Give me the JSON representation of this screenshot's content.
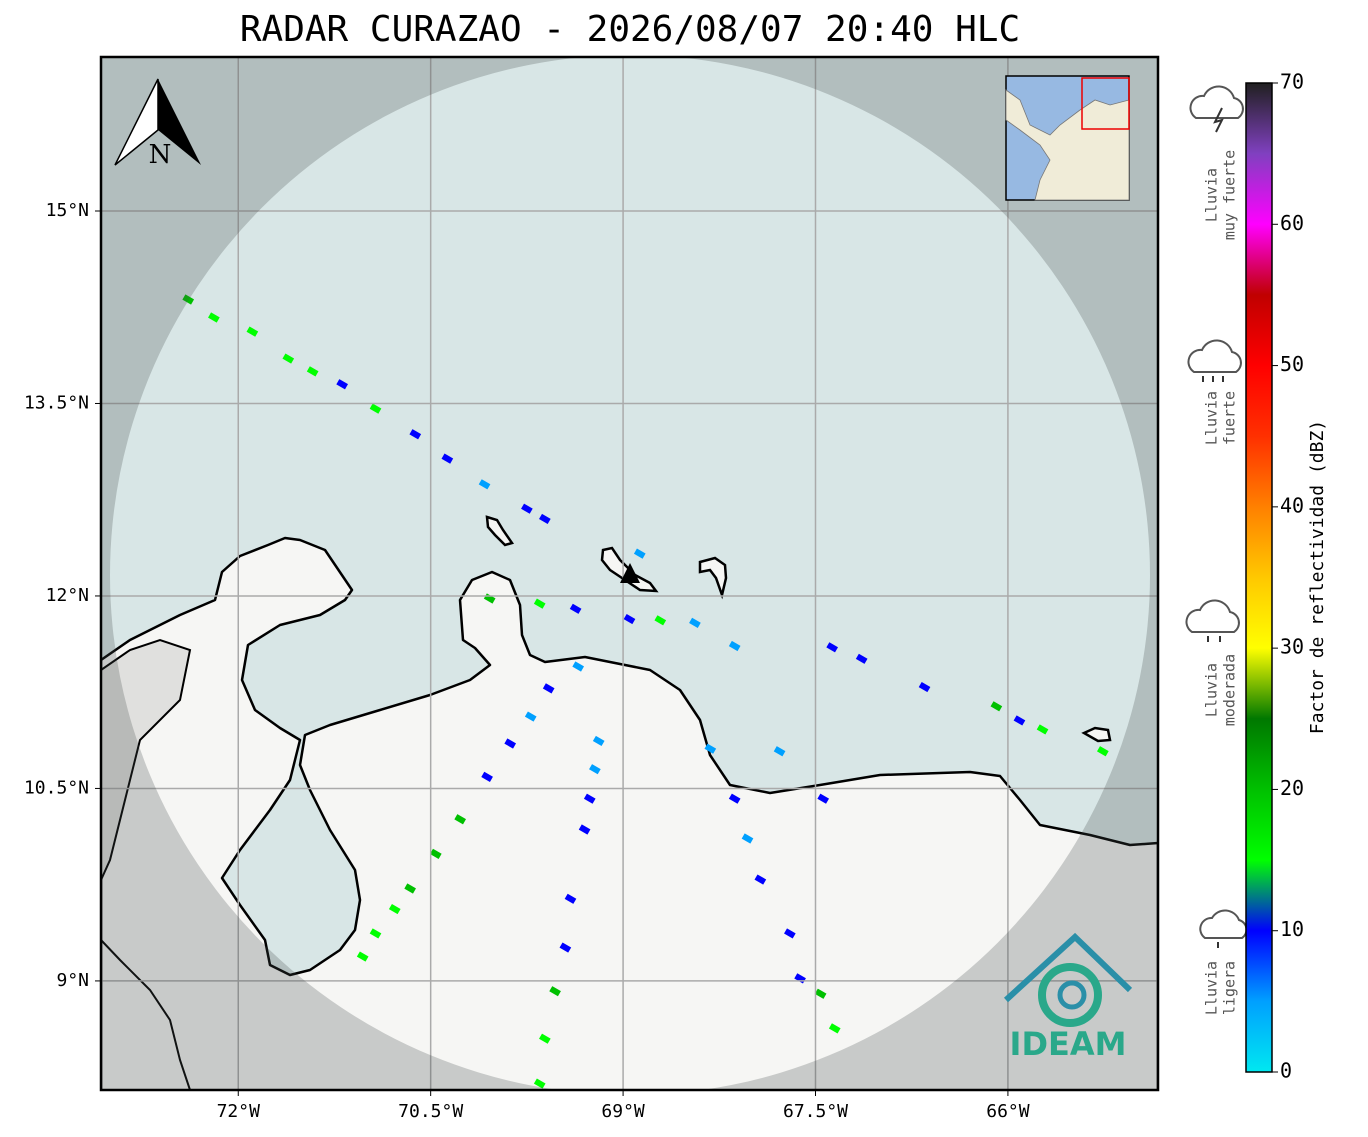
{
  "title": "RADAR CURAZAO - 2026/08/07 20:40 HLC",
  "map": {
    "xlim": [
      -73.07,
      -64.83
    ],
    "ylim": [
      8.15,
      16.2
    ],
    "xticks": [
      {
        "value": -72,
        "label": "72°W"
      },
      {
        "value": -70.5,
        "label": "70.5°W"
      },
      {
        "value": -69,
        "label": "69°W"
      },
      {
        "value": -67.5,
        "label": "67.5°W"
      },
      {
        "value": -66,
        "label": "66°W"
      }
    ],
    "yticks": [
      {
        "value": 15,
        "label": "15°N"
      },
      {
        "value": 13.5,
        "label": "13.5°N"
      },
      {
        "value": 12,
        "label": "12°N"
      },
      {
        "value": 10.5,
        "label": "10.5°N"
      },
      {
        "value": 9,
        "label": "9°N"
      }
    ],
    "grid": true,
    "north_label": "N",
    "echoes": {
      "lon": [
        -72.39,
        -72.19,
        -71.89,
        -71.61,
        -71.42,
        -71.19,
        -70.93,
        -70.62,
        -70.37,
        -70.08,
        -69.75,
        -69.61,
        -68.87,
        -70.04,
        -69.65,
        -69.37,
        -68.95,
        -68.71,
        -68.44,
        -68.13,
        -67.37,
        -67.14,
        -66.65,
        -66.09,
        -65.91,
        -65.73,
        -65.26,
        -69.35,
        -69.58,
        -69.72,
        -69.88,
        -70.06,
        -70.27,
        -70.46,
        -70.66,
        -70.78,
        -70.93,
        -71.03,
        -69.19,
        -69.22,
        -69.26,
        -69.3,
        -69.41,
        -69.45,
        -69.53,
        -69.61,
        -69.65,
        -68.32,
        -68.13,
        -68.03,
        -67.93,
        -67.7,
        -67.62,
        -67.46,
        -67.35,
        -67.44,
        -67.78
      ],
      "lat": [
        14.31,
        14.17,
        14.06,
        13.85,
        13.75,
        13.65,
        13.46,
        13.26,
        13.07,
        12.87,
        12.68,
        12.6,
        12.33,
        11.98,
        11.94,
        11.9,
        11.82,
        11.81,
        11.79,
        11.61,
        11.6,
        11.51,
        11.29,
        11.14,
        11.03,
        10.96,
        10.79,
        11.45,
        11.28,
        11.06,
        10.85,
        10.59,
        10.26,
        9.99,
        9.72,
        9.56,
        9.37,
        9.19,
        10.87,
        10.65,
        10.42,
        10.18,
        9.64,
        9.26,
        8.92,
        8.55,
        8.2,
        10.81,
        10.42,
        10.11,
        9.79,
        9.37,
        9.02,
        8.9,
        8.63,
        10.42,
        10.79
      ],
      "dbz": [
        18,
        17,
        15,
        14,
        16,
        9,
        15,
        8,
        10,
        5,
        9,
        8,
        4,
        18,
        15,
        12,
        8,
        14,
        7,
        5,
        9,
        12,
        9,
        18,
        10,
        14,
        16,
        6,
        10,
        6,
        9,
        12,
        19,
        18,
        18,
        17,
        16,
        17,
        5,
        5,
        9,
        10,
        11,
        9,
        20,
        17,
        14,
        4,
        9,
        6,
        10,
        10,
        12,
        18,
        17,
        9,
        5
      ]
    }
  },
  "colorbar": {
    "label": "Factor de reflectividad (dBZ)",
    "clim": [
      0,
      70
    ],
    "ticks": [
      0,
      10,
      20,
      30,
      40,
      50,
      60,
      70
    ],
    "colors": [
      "#00e8f0",
      "#00a0ff",
      "#0000ff",
      "#00ff00",
      "#00c000",
      "#007800",
      "#ffff00",
      "#ffc800",
      "#ff8000",
      "#ff3000",
      "#ff0000",
      "#c00000",
      "#ff00ff",
      "#8040c0",
      "#202020"
    ]
  },
  "rain_classes": [
    {
      "lines": [
        "Lluvia",
        "muy fuerte"
      ]
    },
    {
      "lines": [
        "Lluvia",
        "fuerte"
      ]
    },
    {
      "lines": [
        "Lluvia",
        "moderada"
      ]
    },
    {
      "lines": [
        "Lluvia",
        "ligera"
      ]
    }
  ],
  "logo": "IDEAM"
}
